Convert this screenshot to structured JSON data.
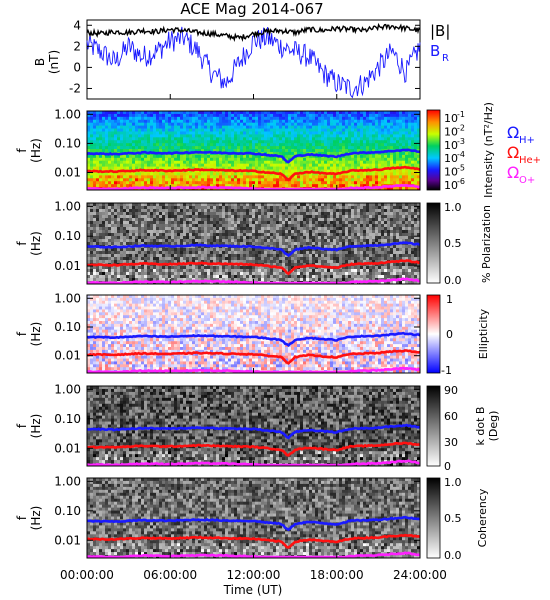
{
  "title": "ACE Mag 2014-067",
  "x_axis": {
    "label": "Time (UT)",
    "ticks": [
      "00:00:00",
      "06:00:00",
      "12:00:00",
      "18:00:00",
      "24:00:00"
    ],
    "tick_hours": [
      0,
      6,
      12,
      18,
      24
    ]
  },
  "colors": {
    "blue": "#1a1aff",
    "red": "#ff1010",
    "magenta": "#ff20ff",
    "black": "#000000"
  },
  "chart_data": [
    {
      "type": "line",
      "panel": "magnetic-field",
      "ylabel": "B (nT)",
      "ylabel_main": "B",
      "ylabel_unit": "(nT)",
      "ylim": [
        -3,
        4.5
      ],
      "yticks": [
        "4",
        "2",
        "0",
        "-2"
      ],
      "ytick_values": [
        4,
        2,
        0,
        -2
      ],
      "x": [
        0,
        1,
        2,
        3,
        4,
        5,
        6,
        7,
        8,
        9,
        10,
        11,
        12,
        13,
        14,
        15,
        16,
        17,
        18,
        19,
        20,
        21,
        22,
        23,
        24
      ],
      "series": [
        {
          "name": "|B|",
          "color": "#000000",
          "values": [
            3.3,
            3.2,
            3.4,
            3.3,
            3.5,
            3.4,
            3.6,
            3.5,
            3.3,
            3.2,
            3.0,
            2.8,
            3.2,
            3.4,
            3.5,
            3.3,
            3.6,
            3.5,
            3.7,
            3.6,
            3.5,
            3.8,
            3.9,
            3.7,
            3.5
          ]
        },
        {
          "name": "B_R",
          "color": "#1a1aff",
          "values": [
            2.2,
            1.5,
            0.5,
            2.0,
            1.0,
            1.5,
            2.5,
            2.8,
            1.5,
            -0.5,
            -1.5,
            0.5,
            2.5,
            2.8,
            2.0,
            1.5,
            1.0,
            -0.5,
            -1.5,
            -2.0,
            -1.5,
            0.0,
            1.5,
            -0.5,
            2.0
          ]
        }
      ],
      "legend": [
        "|B|",
        "B",
        "R"
      ]
    },
    {
      "type": "heatmap",
      "panel": "intensity",
      "ylabel": "f (Hz)",
      "yticks": [
        "1.00",
        "0.10",
        "0.01"
      ],
      "colorbar_label": "Intensity (nT²/Hz)",
      "colorbar_ticks": [
        "10",
        "10",
        "10",
        "10",
        "10",
        "10"
      ],
      "colorbar_exponents": [
        "-1",
        "-2",
        "-3",
        "-4",
        "-5",
        "-6"
      ],
      "legend": [
        "Ω",
        "H+",
        "Ω",
        "He+",
        "Ω",
        "O+"
      ]
    },
    {
      "type": "heatmap",
      "panel": "polarization",
      "ylabel": "f (Hz)",
      "yticks": [
        "1.00",
        "0.10",
        "0.01"
      ],
      "colorbar_label": "% Polarization",
      "colorbar_ticks": [
        "1.0",
        "0.5",
        "0.0"
      ]
    },
    {
      "type": "heatmap",
      "panel": "ellipticity",
      "ylabel": "f (Hz)",
      "yticks": [
        "1.00",
        "0.10",
        "0.01"
      ],
      "colorbar_label": "Ellipticity",
      "colorbar_ticks": [
        "1",
        "0",
        "-1"
      ]
    },
    {
      "type": "heatmap",
      "panel": "k-dot-b",
      "ylabel": "f (Hz)",
      "yticks": [
        "1.00",
        "0.10",
        "0.01"
      ],
      "colorbar_label": "k dot B",
      "colorbar_unit": "(Deg)",
      "colorbar_ticks": [
        "90",
        "60",
        "30",
        "0"
      ]
    },
    {
      "type": "heatmap",
      "panel": "coherency",
      "ylabel": "f (Hz)",
      "yticks": [
        "1.00",
        "0.10",
        "0.01"
      ],
      "colorbar_label": "Coherency",
      "colorbar_ticks": [
        "1.0",
        "0.5",
        "0.0"
      ]
    }
  ],
  "gyrofrequency_lines": {
    "x_hours": [
      0,
      2,
      4,
      6,
      8,
      10,
      12,
      13,
      14,
      14.5,
      15,
      16,
      17,
      18,
      19,
      20,
      21,
      22,
      23,
      24
    ],
    "H+_hz": [
      0.045,
      0.043,
      0.048,
      0.046,
      0.05,
      0.047,
      0.045,
      0.04,
      0.036,
      0.022,
      0.036,
      0.042,
      0.038,
      0.035,
      0.046,
      0.048,
      0.05,
      0.055,
      0.06,
      0.052
    ],
    "He+_hz": [
      0.011,
      0.0108,
      0.012,
      0.0115,
      0.0125,
      0.0118,
      0.0112,
      0.01,
      0.009,
      0.0055,
      0.009,
      0.0105,
      0.0095,
      0.0088,
      0.0115,
      0.012,
      0.0125,
      0.014,
      0.015,
      0.013
    ],
    "O+_hz": [
      0.0028,
      0.0027,
      0.003,
      0.0029,
      0.0031,
      0.003,
      0.0028,
      0.0026,
      0.0024,
      0.0015,
      0.0024,
      0.0027,
      0.0025,
      0.0023,
      0.0029,
      0.003,
      0.0031,
      0.0034,
      0.0037,
      0.0032
    ]
  }
}
